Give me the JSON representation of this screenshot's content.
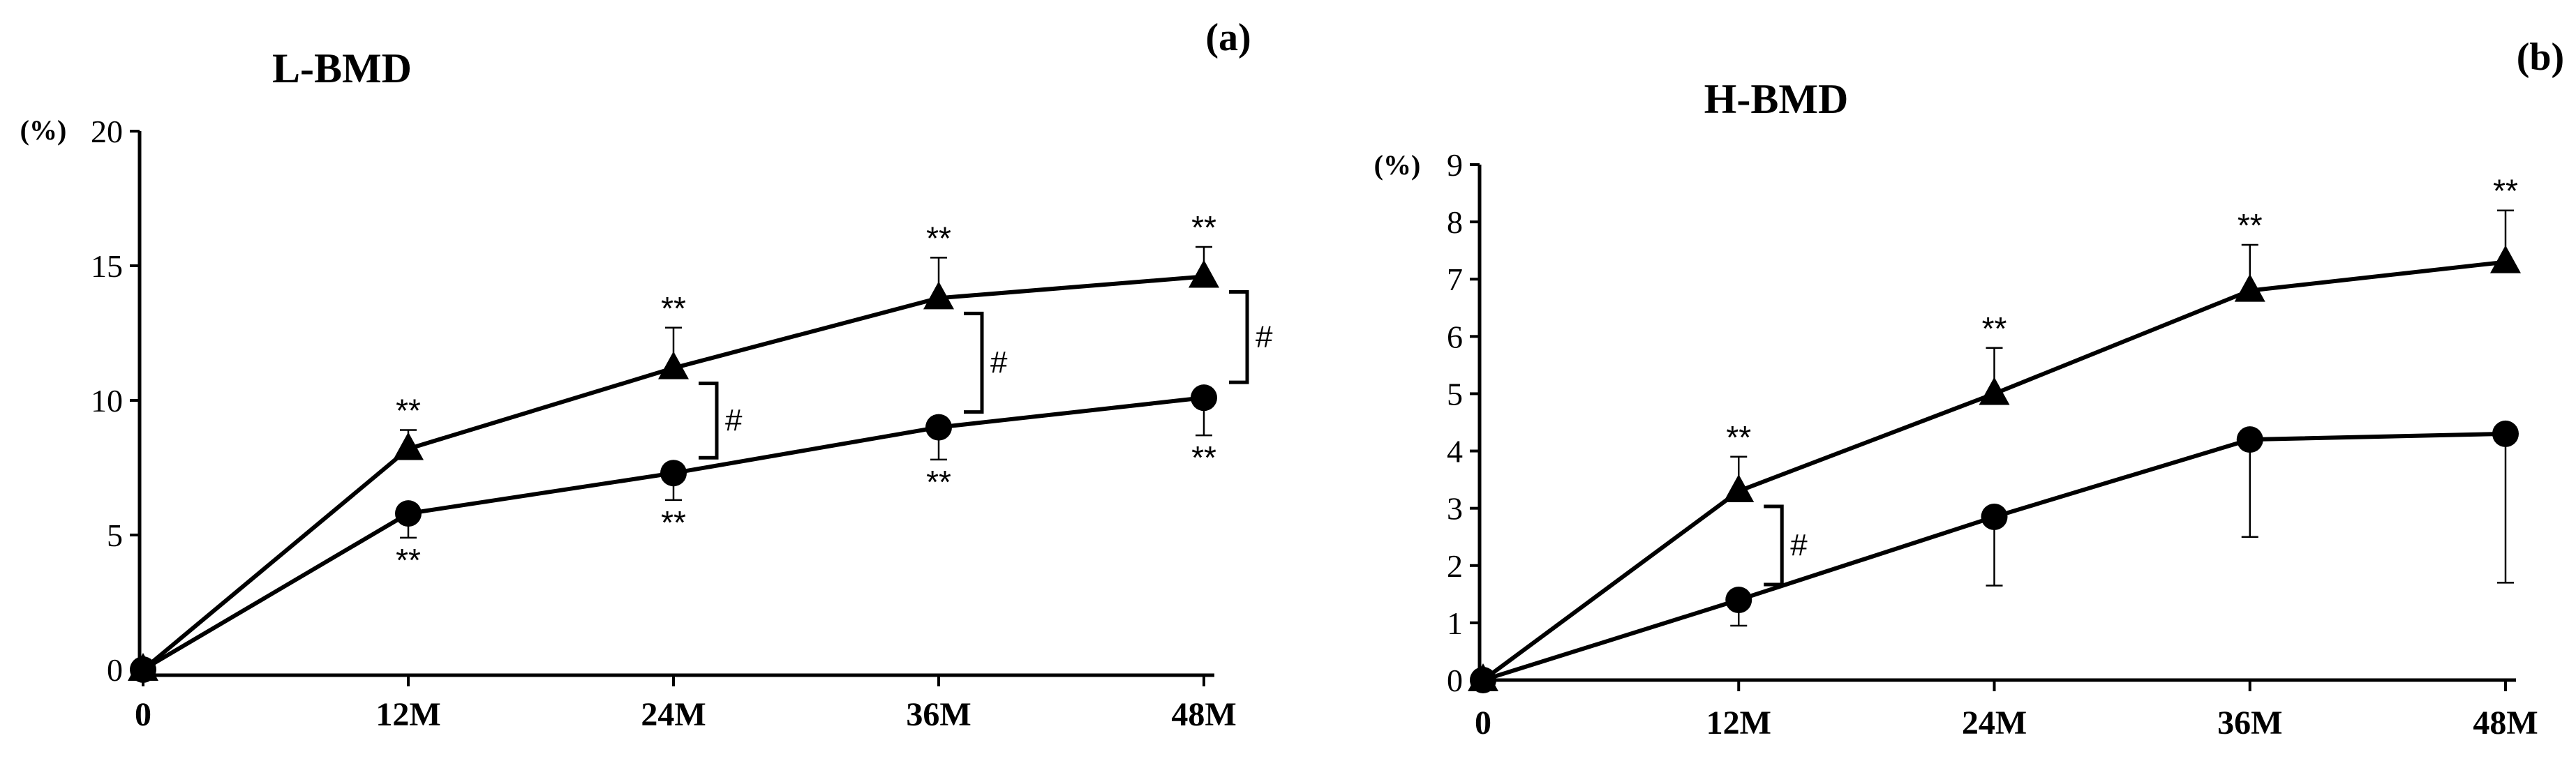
{
  "colors": {
    "ink": "#000000",
    "background": "#ffffff"
  },
  "chart_data": [
    {
      "panel": "(a)",
      "title": "L-BMD",
      "type": "line",
      "ylabel": "(%)",
      "xlabel": "",
      "categories": [
        "0",
        "12M",
        "24M",
        "36M",
        "48M"
      ],
      "ylim": [
        0,
        20
      ],
      "yticks": [
        0,
        5,
        10,
        15,
        20
      ],
      "grid": false,
      "series": [
        {
          "marker": "triangle",
          "values": [
            0,
            8.2,
            11.2,
            13.8,
            14.6
          ],
          "error_up": [
            0,
            0.7,
            1.5,
            1.5,
            1.1
          ],
          "error_down": [
            0,
            0,
            0,
            0,
            0
          ]
        },
        {
          "marker": "circle",
          "values": [
            0,
            5.8,
            7.3,
            9.0,
            10.1
          ],
          "error_up": [
            0,
            0,
            0,
            0,
            0
          ],
          "error_down": [
            0,
            0.9,
            1.0,
            1.2,
            1.4
          ]
        }
      ],
      "annotations": {
        "upper_marks": [
          null,
          "**",
          "**",
          "**",
          "**"
        ],
        "lower_marks": [
          null,
          "**",
          "**",
          "**",
          "**"
        ],
        "brackets": [
          {
            "at": "24M",
            "label": "#"
          },
          {
            "at": "36M",
            "label": "#"
          },
          {
            "at": "48M",
            "label": "#"
          }
        ]
      }
    },
    {
      "panel": "(b)",
      "title": "H-BMD",
      "type": "line",
      "ylabel": "(%)",
      "xlabel": "",
      "categories": [
        "0",
        "12M",
        "24M",
        "36M",
        "48M"
      ],
      "ylim": [
        0,
        9
      ],
      "yticks": [
        0,
        1,
        2,
        3,
        4,
        5,
        6,
        7,
        8,
        9
      ],
      "grid": false,
      "series": [
        {
          "marker": "triangle",
          "values": [
            0,
            3.3,
            5.0,
            6.8,
            7.3
          ],
          "error_up": [
            0,
            0.6,
            0.8,
            0.8,
            0.9
          ],
          "error_down": [
            0,
            0,
            0,
            0,
            0
          ]
        },
        {
          "marker": "circle",
          "values": [
            0,
            1.4,
            2.85,
            4.2,
            4.3
          ],
          "error_up": [
            0,
            0,
            0,
            0,
            0
          ],
          "error_down": [
            0,
            0.45,
            1.2,
            1.7,
            2.6
          ]
        }
      ],
      "annotations": {
        "upper_marks": [
          null,
          "**",
          "**",
          "**",
          "**"
        ],
        "lower_marks": [
          null,
          null,
          null,
          null,
          null
        ],
        "brackets": [
          {
            "at": "12M",
            "label": "#"
          }
        ]
      }
    }
  ]
}
